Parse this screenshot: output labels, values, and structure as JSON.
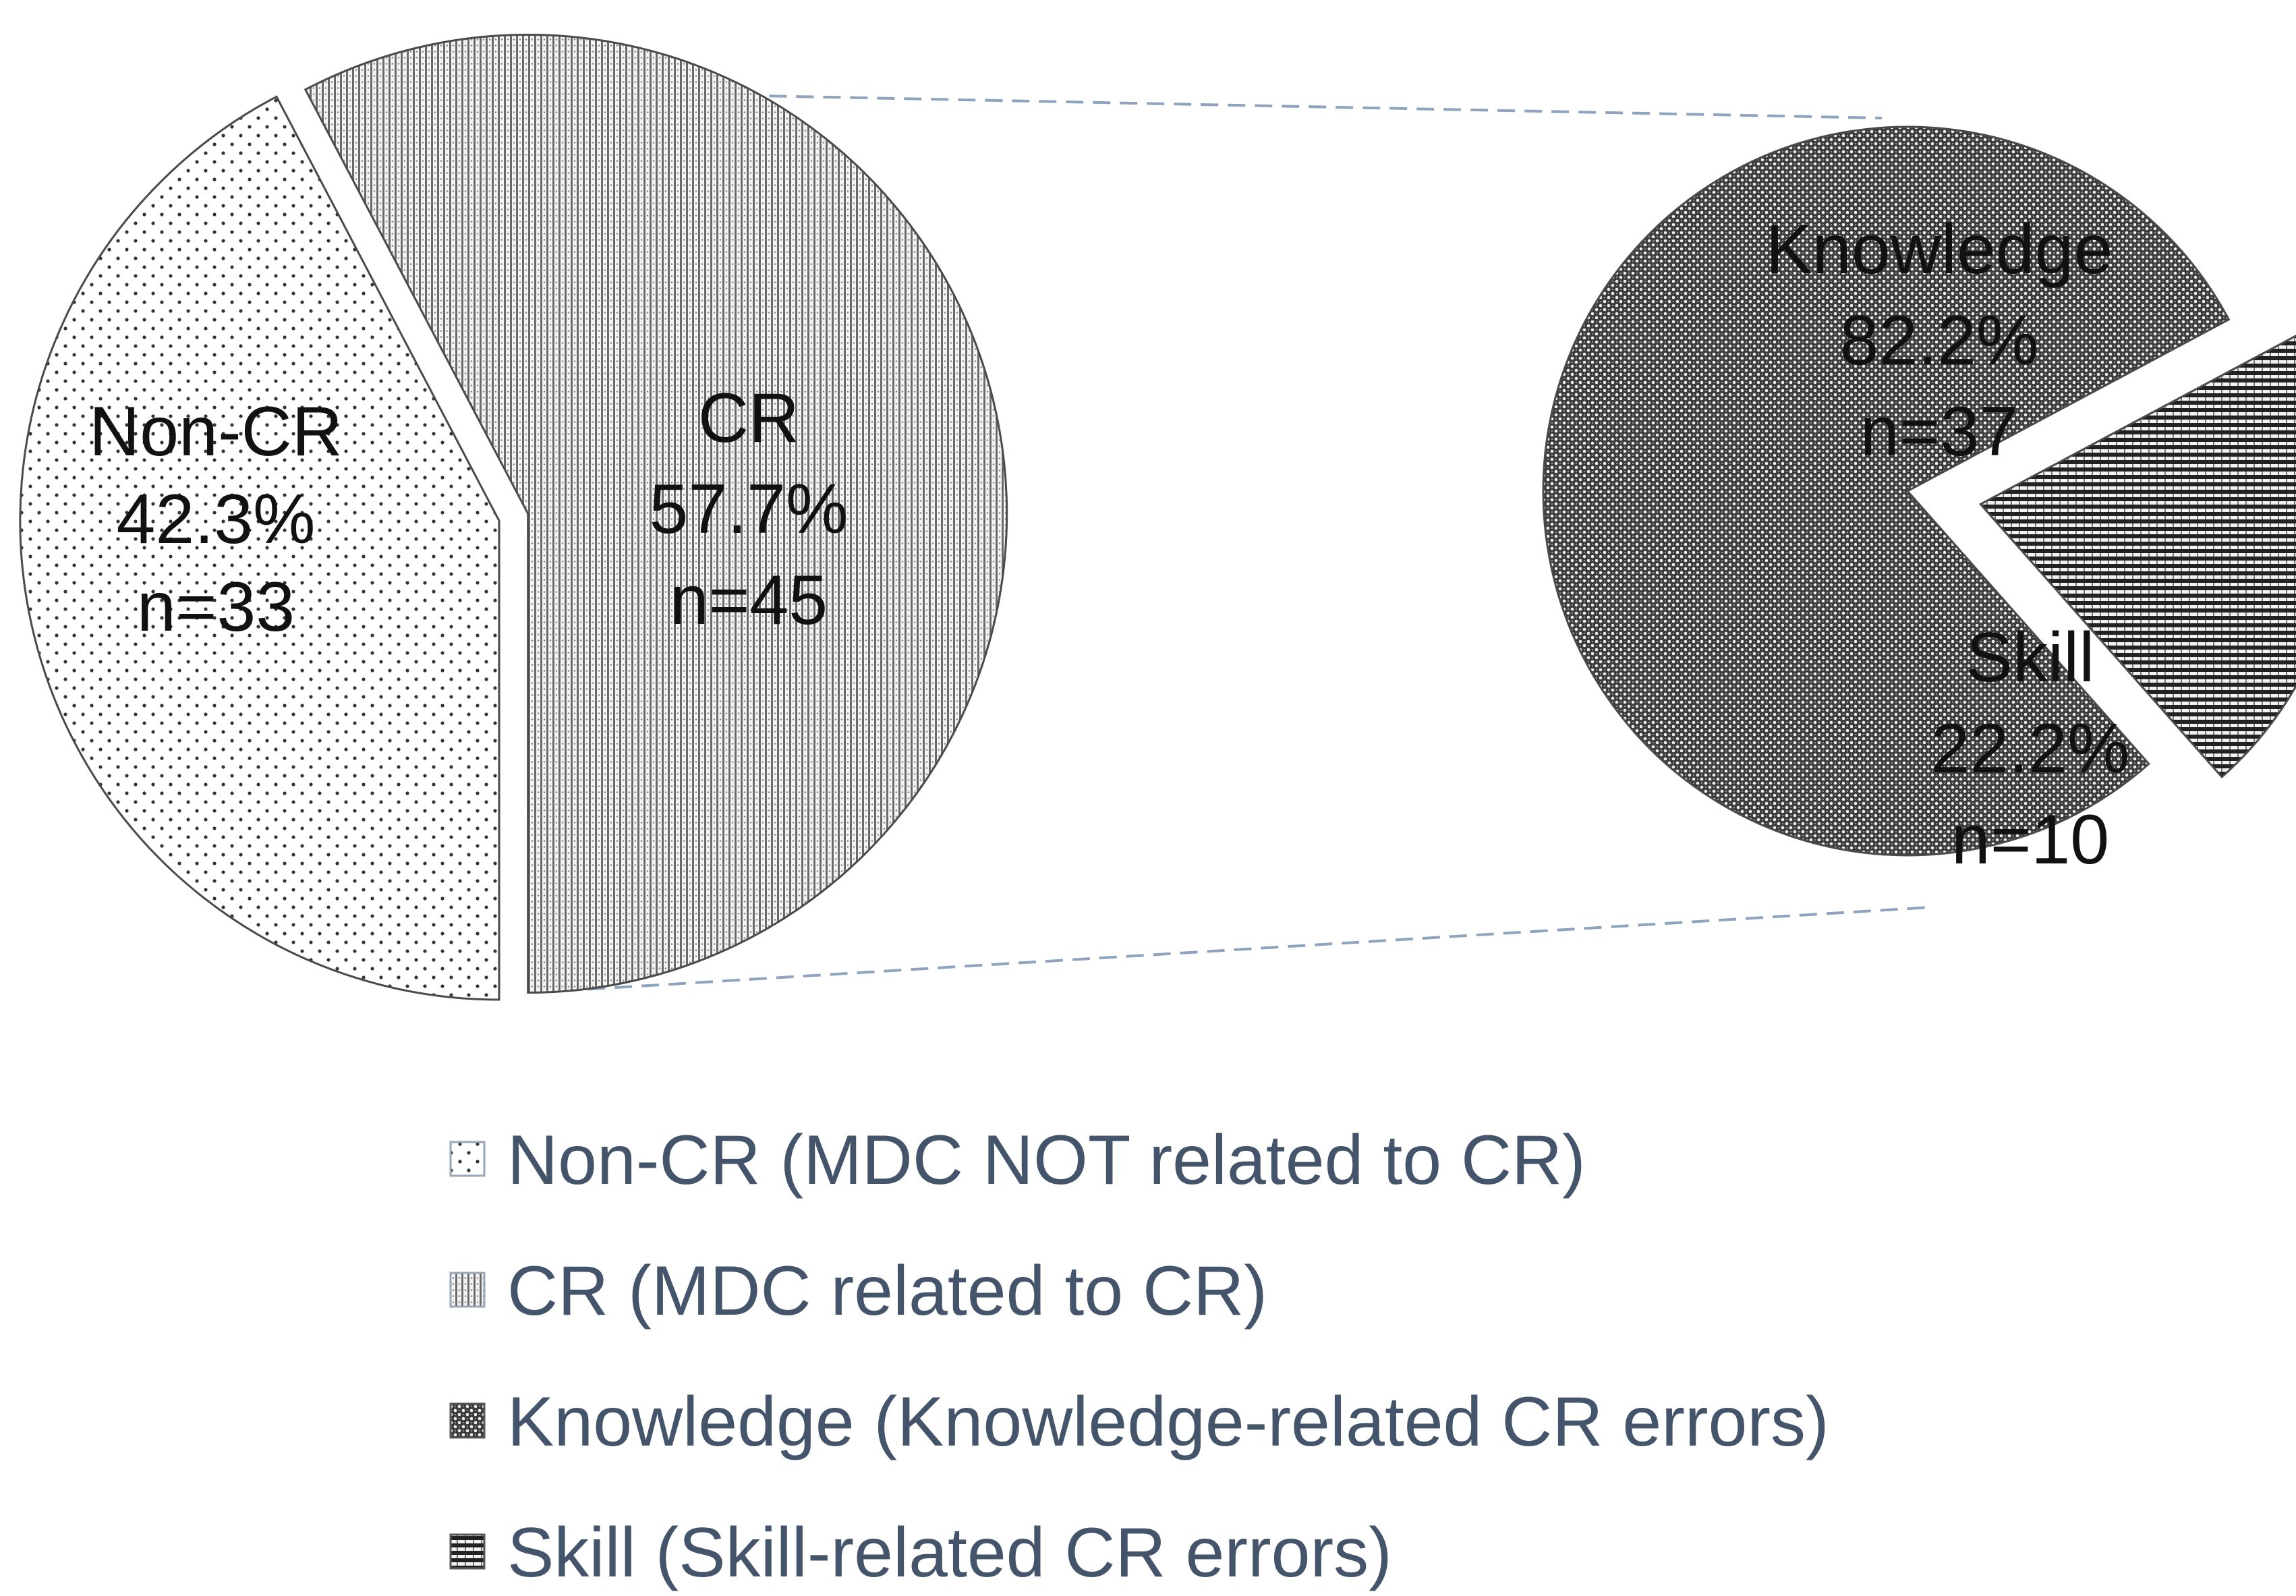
{
  "chart_data": {
    "type": "pie-of-pie",
    "title": "",
    "main_pie": {
      "slices": [
        {
          "key": "noncr",
          "name": "Non-CR",
          "percent_label": "42.3%",
          "count_label": "n=33",
          "value": 33,
          "pattern": "dots-sparse"
        },
        {
          "key": "cr",
          "name": "CR",
          "percent_label": "57.7%",
          "count_label": "n=45",
          "value": 45,
          "pattern": "vertical-dense",
          "exploded": true
        }
      ]
    },
    "secondary_pie": {
      "breakdown_of": "CR",
      "slices": [
        {
          "key": "knowledge",
          "name": "Knowledge",
          "percent_label": "82.2%",
          "count_label": "n=37",
          "value": 37,
          "pattern": "crosshatch-dense"
        },
        {
          "key": "skill",
          "name": "Skill",
          "percent_label": "22.2%",
          "count_label": "n=10",
          "value": 10,
          "pattern": "horizontal-stripes",
          "exploded": true
        }
      ]
    },
    "connector_color": "#8ea3bd",
    "legend": {
      "placement": "bottom",
      "color": "#44546a",
      "entries": [
        {
          "key": "noncr",
          "label": "Non-CR (MDC NOT related to CR)"
        },
        {
          "key": "cr",
          "label": "CR (MDC related to CR)"
        },
        {
          "key": "knowledge",
          "label": "Knowledge (Knowledge-related CR errors)"
        },
        {
          "key": "skill",
          "label": "Skill (Skill-related CR errors)"
        }
      ]
    }
  }
}
